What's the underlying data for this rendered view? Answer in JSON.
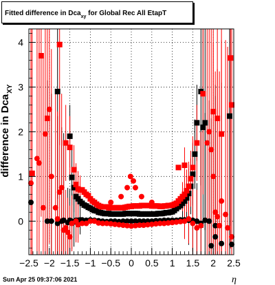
{
  "chart_data": {
    "type": "scatter",
    "title": {
      "main": "Fitted difference in Dca",
      "sub": "xy",
      "rest": " for Global Rec All EtapT"
    },
    "xlabel": "η",
    "ylabel": {
      "main": "difference in Dca",
      "sub": "XY"
    },
    "xlim": [
      -2.5,
      2.5
    ],
    "ylim": [
      -0.75,
      4.3
    ],
    "xticks": [
      -2.5,
      -2,
      -1.5,
      -1,
      -0.5,
      0,
      0.5,
      1,
      1.5,
      2,
      2.5
    ],
    "xtick_labels": [
      "−2.5",
      "−2",
      "−1.5",
      "−1",
      "−0.5",
      "0",
      "0.5",
      "1",
      "1.5",
      "2",
      "2.5"
    ],
    "yticks": [
      0,
      1,
      2,
      3,
      4
    ],
    "ytick_labels": [
      "0",
      "1",
      "2",
      "3",
      "4"
    ],
    "grid": true,
    "series": [
      {
        "marker": "square",
        "color": "#000000",
        "points": [
          [
            -1.5,
            1.9
          ],
          [
            -1.8,
            2.9
          ],
          [
            -1.45,
            0.98
          ],
          [
            -1.4,
            0.75
          ],
          [
            -1.35,
            0.55
          ],
          [
            -1.3,
            0.5
          ],
          [
            -1.25,
            0.44
          ],
          [
            -1.2,
            0.4
          ],
          [
            -1.15,
            0.36
          ],
          [
            -1.1,
            0.34
          ],
          [
            -1.05,
            0.31
          ],
          [
            -1.0,
            0.29
          ],
          [
            -0.95,
            0.26
          ],
          [
            -0.9,
            0.24
          ],
          [
            -0.85,
            0.23
          ],
          [
            -0.8,
            0.2
          ],
          [
            -0.75,
            0.19
          ],
          [
            -0.7,
            0.18
          ],
          [
            -0.65,
            0.17
          ],
          [
            -0.6,
            0.17
          ],
          [
            -0.55,
            0.17
          ],
          [
            -0.5,
            0.16
          ],
          [
            -0.45,
            0.16
          ],
          [
            -0.4,
            0.16
          ],
          [
            -0.35,
            0.16
          ],
          [
            -0.3,
            0.16
          ],
          [
            -0.25,
            0.16
          ],
          [
            -0.2,
            0.16
          ],
          [
            -0.15,
            0.17
          ],
          [
            -0.1,
            0.17
          ],
          [
            -0.05,
            0.17
          ],
          [
            0.0,
            0.17
          ],
          [
            0.05,
            0.17
          ],
          [
            0.1,
            0.17
          ],
          [
            0.15,
            0.17
          ],
          [
            0.2,
            0.16
          ],
          [
            0.25,
            0.16
          ],
          [
            0.3,
            0.16
          ],
          [
            0.35,
            0.16
          ],
          [
            0.4,
            0.16
          ],
          [
            0.45,
            0.16
          ],
          [
            0.5,
            0.16
          ],
          [
            0.55,
            0.16
          ],
          [
            0.6,
            0.16
          ],
          [
            0.65,
            0.17
          ],
          [
            0.7,
            0.17
          ],
          [
            0.75,
            0.17
          ],
          [
            0.8,
            0.18
          ],
          [
            0.85,
            0.19
          ],
          [
            0.9,
            0.19
          ],
          [
            0.95,
            0.2
          ],
          [
            1.0,
            0.21
          ],
          [
            1.05,
            0.24
          ],
          [
            1.1,
            0.28
          ],
          [
            1.15,
            0.32
          ],
          [
            1.2,
            0.35
          ],
          [
            1.25,
            0.4
          ],
          [
            1.3,
            0.45
          ],
          [
            1.35,
            0.52
          ],
          [
            1.4,
            0.62
          ],
          [
            1.45,
            0.78
          ],
          [
            1.5,
            1.05
          ],
          [
            1.55,
            1.5
          ],
          [
            1.6,
            2.2
          ],
          [
            1.75,
            2.1
          ],
          [
            1.8,
            2.2
          ],
          [
            1.7,
            2.9
          ],
          [
            2.4,
            2.35
          ]
        ]
      },
      {
        "marker": "circle",
        "color": "#000000",
        "points": [
          [
            -2.45,
            0.42
          ],
          [
            -2.05,
            0.0
          ],
          [
            -1.95,
            0.0
          ],
          [
            -1.8,
            -0.05
          ],
          [
            -1.7,
            0.0
          ],
          [
            -1.65,
            0.02
          ],
          [
            -1.55,
            -0.03
          ],
          [
            -1.5,
            0.02
          ],
          [
            -1.45,
            0.0
          ],
          [
            -1.4,
            -0.02
          ],
          [
            -1.35,
            0.02
          ],
          [
            -1.3,
            0.02
          ],
          [
            -1.25,
            0.03
          ],
          [
            -1.2,
            0.03
          ],
          [
            -1.1,
            0.02
          ],
          [
            -1.0,
            0.03
          ],
          [
            -0.9,
            0.02
          ],
          [
            -0.8,
            0.01
          ],
          [
            -0.7,
            0.0
          ],
          [
            -0.6,
            -0.01
          ],
          [
            -0.5,
            0.0
          ],
          [
            -0.4,
            0.0
          ],
          [
            -0.3,
            -0.01
          ],
          [
            -0.2,
            0.0
          ],
          [
            -0.1,
            0.0
          ],
          [
            0.0,
            0.0
          ],
          [
            0.1,
            0.0
          ],
          [
            0.2,
            0.0
          ],
          [
            0.3,
            0.0
          ],
          [
            0.4,
            0.0
          ],
          [
            0.5,
            0.0
          ],
          [
            0.6,
            0.01
          ],
          [
            0.7,
            0.01
          ],
          [
            0.8,
            0.02
          ],
          [
            0.9,
            0.02
          ],
          [
            1.0,
            0.02
          ],
          [
            1.1,
            0.02
          ],
          [
            1.2,
            0.03
          ],
          [
            1.3,
            0.03
          ],
          [
            1.4,
            0.02
          ],
          [
            1.5,
            0.02
          ],
          [
            1.6,
            0.0
          ],
          [
            1.7,
            -0.05
          ],
          [
            1.8,
            0.02
          ],
          [
            1.9,
            0.0
          ],
          [
            2.05,
            -0.1
          ],
          [
            2.2,
            -0.5
          ],
          [
            1.95,
            -0.55
          ],
          [
            2.05,
            -0.35
          ],
          [
            2.45,
            -0.52
          ]
        ]
      },
      {
        "marker": "square",
        "color": "#ff0000",
        "points": [
          [
            -2.42,
            1.07
          ],
          [
            -2.2,
            3.7
          ],
          [
            -2.05,
            2.3
          ],
          [
            -1.75,
            3.95
          ],
          [
            -1.6,
            1.75
          ],
          [
            -1.5,
            1.65
          ],
          [
            -1.4,
            1.15
          ],
          [
            -1.35,
            0.82
          ],
          [
            -1.3,
            0.72
          ],
          [
            -1.25,
            0.7
          ],
          [
            -1.2,
            0.7
          ],
          [
            -1.15,
            0.65
          ],
          [
            -1.1,
            0.6
          ],
          [
            -1.05,
            0.57
          ],
          [
            -1.0,
            0.5
          ],
          [
            -0.95,
            0.45
          ],
          [
            -0.9,
            0.42
          ],
          [
            -0.85,
            0.38
          ],
          [
            -0.8,
            0.35
          ],
          [
            -0.75,
            0.33
          ],
          [
            -0.7,
            0.32
          ],
          [
            -0.65,
            0.32
          ],
          [
            -0.6,
            0.32
          ],
          [
            -0.55,
            0.3
          ],
          [
            -0.5,
            0.3
          ],
          [
            -0.45,
            0.3
          ],
          [
            -0.4,
            0.3
          ],
          [
            -0.35,
            0.3
          ],
          [
            -0.3,
            0.3
          ],
          [
            -0.25,
            0.3
          ],
          [
            -0.2,
            0.3
          ],
          [
            -0.15,
            0.31
          ],
          [
            -0.1,
            0.32
          ],
          [
            -0.05,
            0.33
          ],
          [
            0.0,
            0.33
          ],
          [
            0.05,
            0.34
          ],
          [
            0.1,
            0.34
          ],
          [
            0.15,
            0.34
          ],
          [
            0.2,
            0.34
          ],
          [
            0.25,
            0.35
          ],
          [
            0.3,
            0.35
          ],
          [
            0.35,
            0.35
          ],
          [
            0.4,
            0.35
          ],
          [
            0.45,
            0.35
          ],
          [
            0.5,
            0.34
          ],
          [
            0.55,
            0.34
          ],
          [
            0.6,
            0.34
          ],
          [
            0.65,
            0.34
          ],
          [
            0.7,
            0.33
          ],
          [
            0.75,
            0.33
          ],
          [
            0.8,
            0.34
          ],
          [
            0.85,
            0.34
          ],
          [
            0.9,
            0.35
          ],
          [
            0.95,
            0.35
          ],
          [
            1.0,
            0.36
          ],
          [
            1.05,
            0.38
          ],
          [
            1.1,
            0.4
          ],
          [
            1.15,
            0.45
          ],
          [
            1.2,
            0.5
          ],
          [
            1.25,
            0.55
          ],
          [
            1.3,
            0.6
          ],
          [
            1.35,
            0.68
          ],
          [
            1.4,
            0.78
          ],
          [
            1.45,
            0.95
          ],
          [
            1.5,
            1.2
          ],
          [
            1.6,
            1.75
          ],
          [
            1.75,
            2.85
          ],
          [
            2.0,
            2.45
          ],
          [
            2.1,
            2.3
          ],
          [
            2.2,
            1.95
          ],
          [
            2.42,
            3.65
          ],
          [
            2.45,
            2.6
          ],
          [
            1.3,
            1.25
          ],
          [
            1.15,
            1.2
          ]
        ]
      },
      {
        "marker": "circle",
        "color": "#ff0000",
        "points": [
          [
            -2.45,
            0.85
          ],
          [
            -2.3,
            1.4
          ],
          [
            -2.25,
            1.3
          ],
          [
            -2.15,
            0.3
          ],
          [
            -2.1,
            1.95
          ],
          [
            -2.0,
            2.5
          ],
          [
            -1.95,
            1.0
          ],
          [
            -1.85,
            0.3
          ],
          [
            -1.8,
            0.05
          ],
          [
            -1.75,
            0.65
          ],
          [
            -1.7,
            0.75
          ],
          [
            -1.65,
            -0.2
          ],
          [
            -1.6,
            -0.15
          ],
          [
            -1.55,
            -0.25
          ],
          [
            -1.5,
            -0.35
          ],
          [
            -1.45,
            -0.05
          ],
          [
            -1.35,
            0.0
          ],
          [
            -1.3,
            -0.08
          ],
          [
            -1.2,
            -0.05
          ],
          [
            -1.1,
            -0.05
          ],
          [
            -1.0,
            0.0
          ],
          [
            -0.9,
            0.0
          ],
          [
            -0.8,
            -0.04
          ],
          [
            -0.7,
            -0.05
          ],
          [
            -0.6,
            -0.05
          ],
          [
            -0.5,
            -0.06
          ],
          [
            -0.4,
            -0.07
          ],
          [
            -0.3,
            -0.08
          ],
          [
            -0.2,
            -0.09
          ],
          [
            -0.1,
            -0.1
          ],
          [
            0.0,
            -0.11
          ],
          [
            0.1,
            -0.1
          ],
          [
            0.2,
            -0.09
          ],
          [
            0.3,
            -0.09
          ],
          [
            0.4,
            -0.08
          ],
          [
            0.5,
            -0.07
          ],
          [
            0.6,
            -0.06
          ],
          [
            0.7,
            -0.05
          ],
          [
            0.8,
            -0.05
          ],
          [
            0.9,
            -0.04
          ],
          [
            1.0,
            -0.03
          ],
          [
            1.1,
            -0.02
          ],
          [
            1.2,
            -0.01
          ],
          [
            1.3,
            0.0
          ],
          [
            1.4,
            0.05
          ],
          [
            1.5,
            -0.05
          ],
          [
            1.6,
            -0.15
          ],
          [
            1.7,
            -0.1
          ],
          [
            1.85,
            1.75
          ],
          [
            1.9,
            2.0
          ],
          [
            1.95,
            1.6
          ],
          [
            2.0,
            1.0
          ],
          [
            2.05,
            0.2
          ],
          [
            2.1,
            0.1
          ],
          [
            2.15,
            -0.1
          ],
          [
            2.2,
            0.45
          ],
          [
            2.3,
            0.15
          ],
          [
            2.35,
            -0.15
          ],
          [
            2.45,
            -0.35
          ],
          [
            -0.02,
            1.0
          ],
          [
            0.05,
            0.9
          ],
          [
            -0.1,
            0.75
          ],
          [
            0.1,
            0.75
          ],
          [
            -0.25,
            0.55
          ],
          [
            0.25,
            0.55
          ],
          [
            -0.5,
            0.42
          ],
          [
            0.5,
            0.42
          ]
        ]
      }
    ]
  },
  "footer": {
    "timestamp": "Sun Apr 25 09:37:06 2021"
  }
}
